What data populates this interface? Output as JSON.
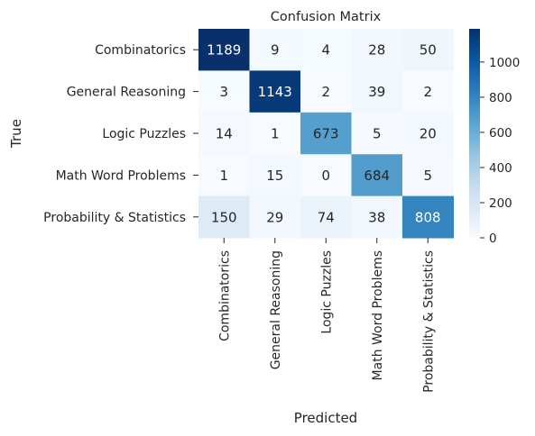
{
  "chart_data": {
    "type": "heatmap",
    "title": "Confusion Matrix",
    "xlabel": "Predicted",
    "ylabel": "True",
    "row_labels": [
      "Combinatorics",
      "General Reasoning",
      "Logic Puzzles",
      "Math Word Problems",
      "Probability & Statistics"
    ],
    "col_labels": [
      "Combinatorics",
      "General Reasoning",
      "Logic Puzzles",
      "Math Word Problems",
      "Probability & Statistics"
    ],
    "values": [
      [
        1189,
        9,
        4,
        28,
        50
      ],
      [
        3,
        1143,
        2,
        39,
        2
      ],
      [
        14,
        1,
        673,
        5,
        20
      ],
      [
        1,
        15,
        0,
        684,
        5
      ],
      [
        150,
        29,
        74,
        38,
        808
      ]
    ],
    "colormap": "Blues",
    "vmin": 0,
    "vmax": 1189,
    "colorbar_ticks": [
      0,
      200,
      400,
      600,
      800,
      1000
    ]
  }
}
